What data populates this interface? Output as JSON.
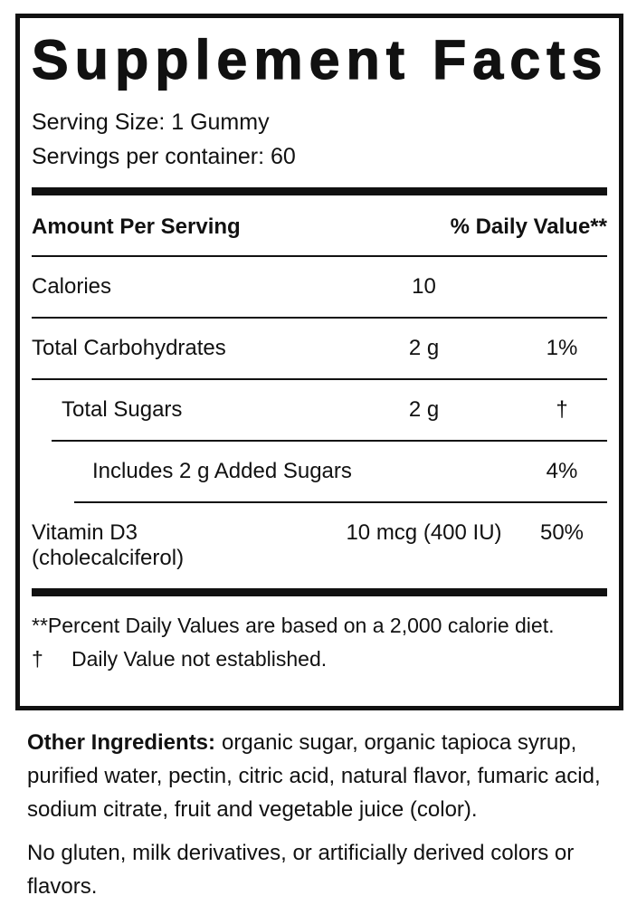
{
  "label_box": {
    "title": "Supplement Facts",
    "serving_size": "Serving Size: 1 Gummy",
    "servings_per_container": "Servings per container: 60",
    "columns": {
      "amount": "Amount Per Serving",
      "daily_value": "% Daily Value**"
    },
    "rows": [
      {
        "label": "Calories",
        "amount": "10",
        "dv": ""
      },
      {
        "label": "Total Carbohydrates",
        "amount": "2 g",
        "dv": "1%"
      },
      {
        "label": "Total Sugars",
        "amount": "2 g",
        "dv": "†"
      },
      {
        "label": "Includes 2 g Added Sugars",
        "amount": "",
        "dv": "4%"
      },
      {
        "label": "Vitamin D3",
        "label_sub": "(cholecalciferol)",
        "amount": "10 mcg (400 IU)",
        "dv": "50%"
      }
    ],
    "footnotes": {
      "percent_daily_value": "**Percent Daily Values are based on a 2,000 calorie diet.",
      "dagger_symbol": "†",
      "dagger_text": "Daily Value not established."
    }
  },
  "other_ingredients": {
    "label": "Other Ingredients:",
    "text": "organic sugar, organic tapioca syrup, purified water, pectin, citric acid, natural flavor, fumaric acid, sodium citrate, fruit and vegetable juice (color)."
  },
  "allergen_statement": "No gluten, milk derivatives, or artificially derived colors or flavors.",
  "colors": {
    "ink": "#111111",
    "background": "#ffffff"
  }
}
